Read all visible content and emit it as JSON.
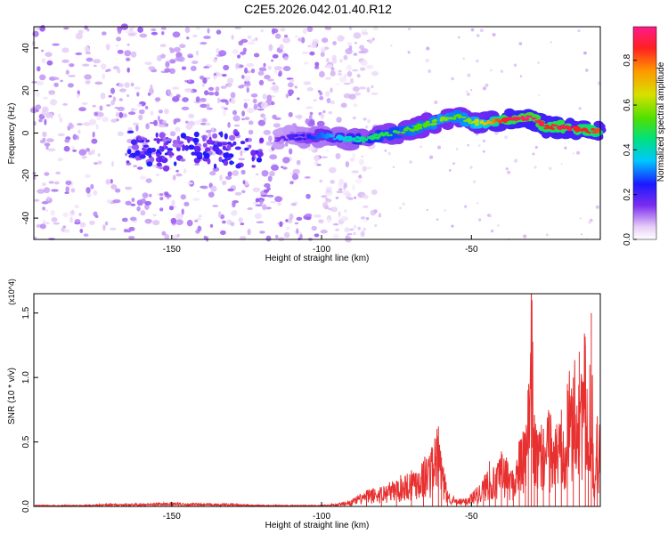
{
  "figure": {
    "title": "C2E5.2026.042.01.40.R12"
  },
  "chart_data": [
    {
      "type": "heatmap",
      "title": "C2E5.2026.042.01.40.R12",
      "xlabel": "Height of straight line (km)",
      "ylabel": "Frequency (Hz)",
      "xlim": [
        -196,
        -7
      ],
      "ylim": [
        -50,
        50
      ],
      "xticks": [
        -150,
        -100,
        -50
      ],
      "xtick_labels": [
        "-150",
        "-100",
        "-50"
      ],
      "yticks": [
        -40,
        -20,
        0,
        20,
        40
      ],
      "ytick_labels": [
        "-40",
        "-20",
        "0",
        "20",
        "40"
      ],
      "colorbar": {
        "label": "Normalized spectral amplitude",
        "range": [
          0,
          0.95
        ],
        "ticks": [
          0,
          0.2,
          0.4,
          0.6,
          0.8
        ],
        "tick_labels": [
          "0.0",
          "0.2",
          "0.4",
          "0.6",
          "0.8"
        ]
      },
      "ridge": {
        "x": [
          -115,
          -110,
          -105,
          -100,
          -95,
          -90,
          -85,
          -80,
          -75,
          -70,
          -65,
          -60,
          -55,
          -50,
          -45,
          -40,
          -35,
          -30,
          -25,
          -20,
          -15,
          -10,
          -7
        ],
        "frequency": [
          -3,
          -2,
          -2,
          -1,
          -2,
          -3,
          -3,
          -1,
          0,
          2,
          4,
          6,
          8,
          5,
          5,
          6,
          7,
          7,
          3,
          3,
          2,
          1,
          1
        ],
        "amplitude": [
          0.15,
          0.2,
          0.25,
          0.3,
          0.35,
          0.4,
          0.45,
          0.5,
          0.5,
          0.55,
          0.55,
          0.6,
          0.55,
          0.6,
          0.7,
          0.85,
          0.9,
          0.95,
          0.85,
          0.9,
          0.85,
          0.85,
          0.8
        ]
      },
      "secondary_cluster": {
        "x_range": [
          -165,
          -120
        ],
        "frequency_range": [
          -8,
          8
        ],
        "amplitude": 0.2
      },
      "noise_region": {
        "x_range": [
          -196,
          -90
        ],
        "frequency_range": [
          -50,
          50
        ],
        "amplitude": 0.05
      }
    },
    {
      "type": "line",
      "xlabel": "Height of straight line (km)",
      "ylabel": "SNR (10 * v/v)",
      "y_multiplier": "(x10^4)",
      "xlim": [
        -196,
        -7
      ],
      "ylim": [
        0,
        1.65
      ],
      "xticks": [
        -150,
        -100,
        -50
      ],
      "xtick_labels": [
        "-150",
        "-100",
        "-50"
      ],
      "yticks": [
        0,
        0.5,
        1.0,
        1.5
      ],
      "ytick_labels": [
        "0.0",
        "0.5",
        "1.0",
        "1.5"
      ],
      "series": [
        {
          "name": "SNR",
          "color": "#e83030",
          "x": [
            -196,
            -180,
            -170,
            -160,
            -150,
            -140,
            -130,
            -120,
            -110,
            -100,
            -95,
            -90,
            -85,
            -80,
            -75,
            -70,
            -66,
            -63,
            -61,
            -60,
            -58,
            -55,
            -52,
            -50,
            -48,
            -46,
            -44,
            -42,
            -40,
            -38,
            -36,
            -34,
            -32,
            -31,
            -30,
            -29,
            -28,
            -26,
            -24,
            -22,
            -20,
            -18,
            -16,
            -14,
            -12,
            -11,
            -10,
            -9,
            -8,
            -7
          ],
          "y": [
            0.01,
            0.01,
            0.02,
            0.02,
            0.03,
            0.02,
            0.02,
            0.01,
            0.01,
            0.01,
            0.02,
            0.05,
            0.12,
            0.15,
            0.2,
            0.28,
            0.35,
            0.45,
            0.62,
            0.38,
            0.12,
            0.05,
            0.06,
            0.1,
            0.15,
            0.2,
            0.35,
            0.25,
            0.4,
            0.35,
            0.25,
            0.5,
            0.55,
            0.9,
            1.65,
            0.7,
            0.55,
            0.6,
            0.7,
            0.6,
            0.75,
            0.95,
            1.0,
            1.2,
            1.25,
            0.5,
            1.5,
            0.15,
            0.7,
            0.6
          ]
        }
      ]
    }
  ]
}
